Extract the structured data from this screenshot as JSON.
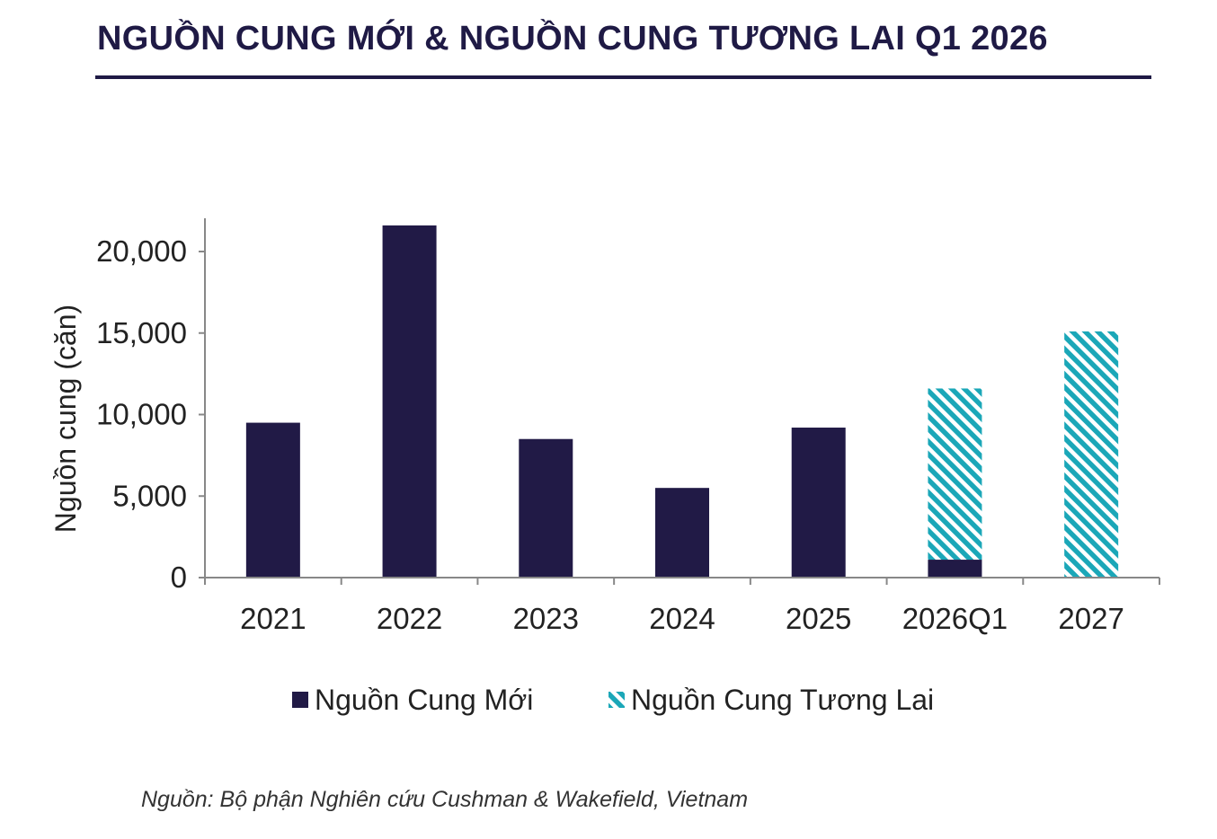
{
  "title": "NGUỒN CUNG MỚI & NGUỒN CUNG TƯƠNG LAI Q1 2026",
  "source": "Nguồn: Bộ phận Nghiên cứu Cushman & Wakefield, Vietnam",
  "colors": {
    "title": "#1f1a45",
    "new_supply": "#211a46",
    "future_supply": "#1ba7b8",
    "axis": "#888888"
  },
  "chart_data": {
    "type": "bar",
    "stacked": true,
    "categories": [
      "2021",
      "2022",
      "2023",
      "2024",
      "2025",
      "2026Q1",
      "2027"
    ],
    "series": [
      {
        "name": "Nguồn Cung Mới",
        "pattern": "solid",
        "values": [
          9500,
          21600,
          8500,
          5500,
          9200,
          1100,
          0
        ]
      },
      {
        "name": "Nguồn Cung Tương Lai",
        "pattern": "hatched",
        "values": [
          0,
          0,
          0,
          0,
          0,
          10500,
          15100
        ]
      }
    ],
    "ylabel": "Nguồn cung (căn)",
    "xlabel": "",
    "ylim": [
      0,
      22000
    ],
    "yticks": [
      0,
      5000,
      10000,
      15000,
      20000
    ],
    "ytick_labels": [
      "0",
      "5,000",
      "10,000",
      "15,000",
      "20,000"
    ],
    "grid": false,
    "legend": "bottom"
  }
}
